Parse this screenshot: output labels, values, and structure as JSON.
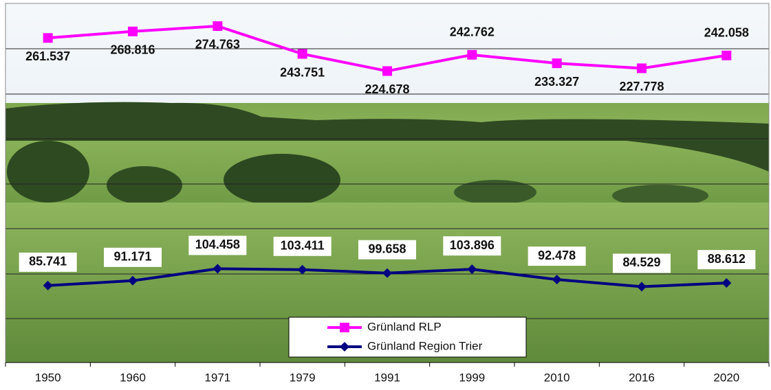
{
  "chart_data": {
    "type": "line",
    "categories": [
      "1950",
      "1960",
      "1971",
      "1979",
      "1991",
      "1999",
      "2010",
      "2016",
      "2020"
    ],
    "series": [
      {
        "name": "Grünland RLP",
        "color": "#ff00ff",
        "marker": "square",
        "values": [
          261537,
          268816,
          274763,
          243751,
          224678,
          242762,
          233327,
          227778,
          242058
        ],
        "value_labels": [
          "261.537",
          "268.816",
          "274.763",
          "243.751",
          "224.678",
          "242.762",
          "233.327",
          "227.778",
          "242.058"
        ]
      },
      {
        "name": "Grünland Region Trier",
        "color": "#000080",
        "marker": "diamond",
        "axis": "y2",
        "values": [
          85741,
          91171,
          104458,
          103411,
          99658,
          103896,
          92478,
          84529,
          88612
        ],
        "value_labels": [
          "85.741",
          "91.171",
          "104.458",
          "103.411",
          "99.658",
          "103.896",
          "92.478",
          "84.529",
          "88.612"
        ]
      }
    ],
    "ylim": [
      -100000,
      300000
    ],
    "y2lim": [
      0,
      400000
    ]
  }
}
